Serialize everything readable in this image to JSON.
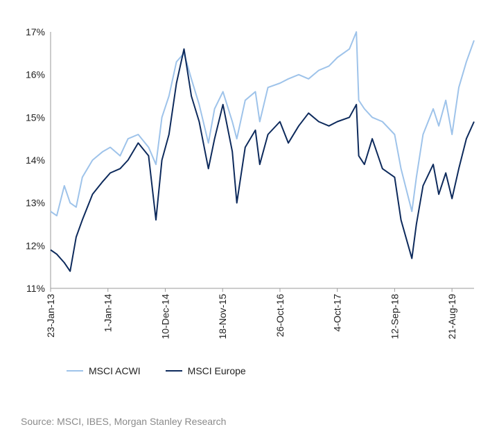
{
  "chart_data": {
    "type": "line",
    "ylim": [
      11,
      17
    ],
    "y_ticks": [
      "11%",
      "12%",
      "13%",
      "14%",
      "15%",
      "16%",
      "17%"
    ],
    "x_ticks": [
      "23-Jan-13",
      "1-Jan-14",
      "10-Dec-14",
      "18-Nov-15",
      "26-Oct-16",
      "4-Oct-17",
      "12-Sep-18",
      "21-Aug-19"
    ],
    "xlim": [
      "2013-01-23",
      "2019-12-31"
    ],
    "grid": false,
    "legend_position": "bottom-left",
    "series": [
      {
        "name": "MSCI ACWI",
        "color": "#9ec3ea",
        "points": [
          [
            "2013-01-23",
            12.8
          ],
          [
            "2013-03-01",
            12.7
          ],
          [
            "2013-04-15",
            13.4
          ],
          [
            "2013-05-20",
            13.0
          ],
          [
            "2013-06-25",
            12.9
          ],
          [
            "2013-08-01",
            13.6
          ],
          [
            "2013-10-01",
            14.0
          ],
          [
            "2013-12-01",
            14.2
          ],
          [
            "2014-01-15",
            14.3
          ],
          [
            "2014-03-15",
            14.1
          ],
          [
            "2014-05-01",
            14.5
          ],
          [
            "2014-07-01",
            14.6
          ],
          [
            "2014-09-01",
            14.3
          ],
          [
            "2014-10-15",
            13.9
          ],
          [
            "2014-11-20",
            15.0
          ],
          [
            "2015-01-01",
            15.5
          ],
          [
            "2015-02-15",
            16.3
          ],
          [
            "2015-04-01",
            16.5
          ],
          [
            "2015-05-15",
            15.9
          ],
          [
            "2015-07-01",
            15.3
          ],
          [
            "2015-08-25",
            14.4
          ],
          [
            "2015-10-01",
            15.2
          ],
          [
            "2015-11-20",
            15.6
          ],
          [
            "2016-01-15",
            14.9
          ],
          [
            "2016-02-11",
            14.5
          ],
          [
            "2016-04-01",
            15.4
          ],
          [
            "2016-06-01",
            15.6
          ],
          [
            "2016-06-27",
            14.9
          ],
          [
            "2016-08-15",
            15.7
          ],
          [
            "2016-10-26",
            15.8
          ],
          [
            "2016-12-15",
            15.9
          ],
          [
            "2017-02-15",
            16.0
          ],
          [
            "2017-04-15",
            15.9
          ],
          [
            "2017-06-15",
            16.1
          ],
          [
            "2017-08-15",
            16.2
          ],
          [
            "2017-10-04",
            16.4
          ],
          [
            "2017-12-15",
            16.6
          ],
          [
            "2018-01-26",
            17.0
          ],
          [
            "2018-02-09",
            15.4
          ],
          [
            "2018-03-15",
            15.2
          ],
          [
            "2018-05-01",
            15.0
          ],
          [
            "2018-07-01",
            14.9
          ],
          [
            "2018-09-12",
            14.6
          ],
          [
            "2018-10-20",
            13.8
          ],
          [
            "2018-12-24",
            12.8
          ],
          [
            "2019-01-20",
            13.6
          ],
          [
            "2019-03-01",
            14.6
          ],
          [
            "2019-05-01",
            15.2
          ],
          [
            "2019-06-03",
            14.8
          ],
          [
            "2019-07-15",
            15.4
          ],
          [
            "2019-08-21",
            14.6
          ],
          [
            "2019-10-01",
            15.7
          ],
          [
            "2019-11-15",
            16.3
          ],
          [
            "2019-12-31",
            16.8
          ]
        ]
      },
      {
        "name": "MSCI Europe",
        "color": "#0d2a5c",
        "points": [
          [
            "2013-01-23",
            11.9
          ],
          [
            "2013-03-01",
            11.8
          ],
          [
            "2013-04-15",
            11.6
          ],
          [
            "2013-05-20",
            11.4
          ],
          [
            "2013-06-25",
            12.2
          ],
          [
            "2013-08-01",
            12.6
          ],
          [
            "2013-10-01",
            13.2
          ],
          [
            "2013-12-01",
            13.5
          ],
          [
            "2014-01-15",
            13.7
          ],
          [
            "2014-03-15",
            13.8
          ],
          [
            "2014-05-01",
            14.0
          ],
          [
            "2014-07-01",
            14.4
          ],
          [
            "2014-09-01",
            14.1
          ],
          [
            "2014-10-15",
            12.6
          ],
          [
            "2014-11-20",
            14.0
          ],
          [
            "2015-01-01",
            14.6
          ],
          [
            "2015-02-15",
            15.8
          ],
          [
            "2015-04-01",
            16.6
          ],
          [
            "2015-05-15",
            15.5
          ],
          [
            "2015-07-01",
            14.9
          ],
          [
            "2015-08-25",
            13.8
          ],
          [
            "2015-10-01",
            14.5
          ],
          [
            "2015-11-20",
            15.3
          ],
          [
            "2016-01-15",
            14.2
          ],
          [
            "2016-02-11",
            13.0
          ],
          [
            "2016-04-01",
            14.3
          ],
          [
            "2016-06-01",
            14.7
          ],
          [
            "2016-06-27",
            13.9
          ],
          [
            "2016-08-15",
            14.6
          ],
          [
            "2016-10-26",
            14.9
          ],
          [
            "2016-12-15",
            14.4
          ],
          [
            "2017-02-15",
            14.8
          ],
          [
            "2017-04-15",
            15.1
          ],
          [
            "2017-06-15",
            14.9
          ],
          [
            "2017-08-15",
            14.8
          ],
          [
            "2017-10-04",
            14.9
          ],
          [
            "2017-12-15",
            15.0
          ],
          [
            "2018-01-26",
            15.3
          ],
          [
            "2018-02-09",
            14.1
          ],
          [
            "2018-03-15",
            13.9
          ],
          [
            "2018-05-01",
            14.5
          ],
          [
            "2018-07-01",
            13.8
          ],
          [
            "2018-09-12",
            13.6
          ],
          [
            "2018-10-20",
            12.6
          ],
          [
            "2018-12-24",
            11.7
          ],
          [
            "2019-01-20",
            12.5
          ],
          [
            "2019-03-01",
            13.4
          ],
          [
            "2019-05-01",
            13.9
          ],
          [
            "2019-06-03",
            13.2
          ],
          [
            "2019-07-15",
            13.7
          ],
          [
            "2019-08-21",
            13.1
          ],
          [
            "2019-10-01",
            13.8
          ],
          [
            "2019-11-15",
            14.5
          ],
          [
            "2019-12-31",
            14.9
          ]
        ]
      }
    ]
  },
  "legend": [
    {
      "label": "MSCI ACWI",
      "color": "#9ec3ea"
    },
    {
      "label": "MSCI Europe",
      "color": "#0d2a5c"
    }
  ],
  "source": "Source: MSCI, IBES, Morgan Stanley Research"
}
